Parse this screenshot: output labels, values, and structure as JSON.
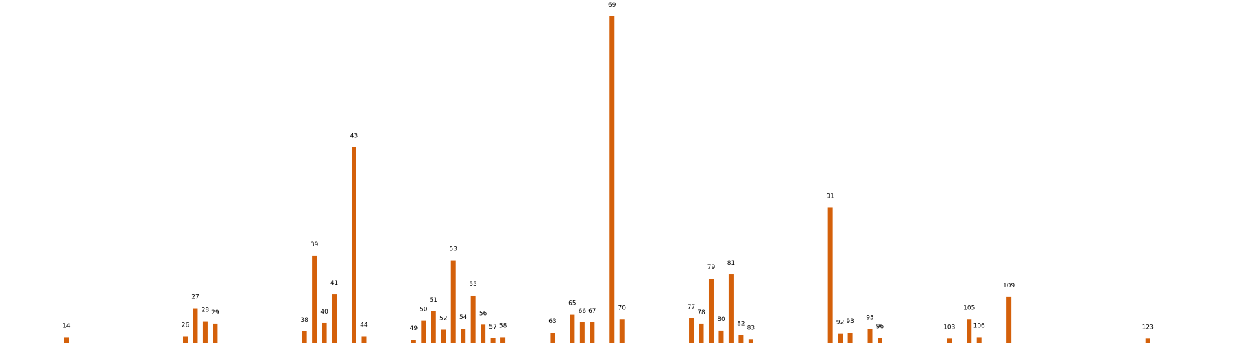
{
  "colors": {
    "bar": "#d4600a",
    "label": "#000000",
    "background": "#ffffff"
  },
  "chart_data": {
    "type": "bar",
    "title": "",
    "xlabel": "",
    "ylabel": "",
    "axes_visible": false,
    "grid": false,
    "legend": "none",
    "xlim": [
      8,
      131
    ],
    "ylim": [
      0,
      100
    ],
    "x": [
      14,
      26,
      27,
      28,
      29,
      38,
      39,
      40,
      41,
      43,
      44,
      49,
      50,
      51,
      52,
      53,
      54,
      55,
      56,
      57,
      58,
      63,
      65,
      66,
      67,
      69,
      70,
      77,
      78,
      79,
      80,
      81,
      82,
      83,
      91,
      92,
      93,
      95,
      96,
      103,
      105,
      106,
      109,
      123
    ],
    "labels": [
      "14",
      "26",
      "27",
      "28",
      "29",
      "38",
      "39",
      "40",
      "41",
      "43",
      "44",
      "49",
      "50",
      "51",
      "52",
      "53",
      "54",
      "55",
      "56",
      "57",
      "58",
      "63",
      "65",
      "66",
      "67",
      "69",
      "70",
      "77",
      "78",
      "79",
      "80",
      "81",
      "82",
      "83",
      "91",
      "92",
      "93",
      "95",
      "96",
      "103",
      "105",
      "106",
      "109",
      "123"
    ],
    "values": [
      1.8,
      2.0,
      10.6,
      6.6,
      5.9,
      3.6,
      26.7,
      6.1,
      14.9,
      60.0,
      2.0,
      1.0,
      6.8,
      9.7,
      4.1,
      25.3,
      4.4,
      14.5,
      5.6,
      1.5,
      1.8,
      3.1,
      8.7,
      6.3,
      6.3,
      100.0,
      7.3,
      7.6,
      5.9,
      19.7,
      3.8,
      21.0,
      2.4,
      1.2,
      41.5,
      2.8,
      3.1,
      4.3,
      1.6,
      1.4,
      7.3,
      1.8,
      14.1,
      1.4
    ]
  }
}
